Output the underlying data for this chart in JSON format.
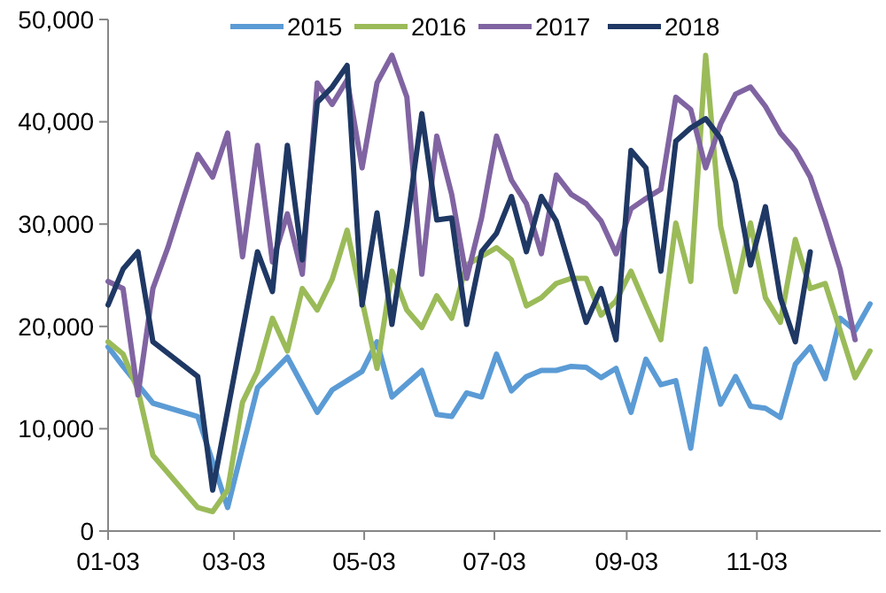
{
  "chart_data": {
    "type": "line",
    "legend": "top",
    "line_style": "solid",
    "xlim": [
      "--01-03",
      "--12-31"
    ],
    "xticks": [
      {
        "value": "--01-03",
        "label": "01-03"
      },
      {
        "value": "--03-03",
        "label": "03-03"
      },
      {
        "value": "--05-03",
        "label": "05-03"
      },
      {
        "value": "--07-03",
        "label": "07-03"
      },
      {
        "value": "--09-03",
        "label": "09-03"
      },
      {
        "value": "--11-03",
        "label": "11-03"
      }
    ],
    "ylim": [
      0,
      50000
    ],
    "yticks": [
      {
        "value": 0,
        "label": "0"
      },
      {
        "value": 10000,
        "label": "10,000"
      },
      {
        "value": 20000,
        "label": "20,000"
      },
      {
        "value": 30000,
        "label": "30,000"
      },
      {
        "value": 40000,
        "label": "40,000"
      },
      {
        "value": 50000,
        "label": "50,000"
      }
    ],
    "series": [
      {
        "name": "2015",
        "color": "#5b9bd5",
        "x": [
          "--01-03",
          "--01-10",
          "--01-24",
          "--02-14",
          "--02-28",
          "--03-14",
          "--03-28",
          "--04-11",
          "--04-18",
          "--05-02",
          "--05-09",
          "--05-16",
          "--05-30",
          "--06-06",
          "--06-13",
          "--06-20",
          "--06-27",
          "--07-04",
          "--07-11",
          "--07-18",
          "--07-25",
          "--08-01",
          "--08-08",
          "--08-15",
          "--08-22",
          "--08-29",
          "--09-05",
          "--09-12",
          "--09-19",
          "--09-26",
          "--10-03",
          "--10-10",
          "--10-17",
          "--10-24",
          "--10-31",
          "--11-07",
          "--11-14",
          "--11-21",
          "--11-28",
          "--12-05",
          "--12-12",
          "--12-19",
          "--12-26"
        ],
        "values": [
          18000,
          16100,
          12500,
          11200,
          2300,
          14000,
          17000,
          11600,
          13800,
          15600,
          18500,
          13100,
          15700,
          11400,
          11200,
          13500,
          13100,
          17300,
          13700,
          15100,
          15700,
          15700,
          16100,
          16000,
          15000,
          15900,
          11600,
          16800,
          14300,
          14700,
          8100,
          17800,
          12400,
          15100,
          12200,
          12000,
          11100,
          16300,
          18000,
          14900,
          20800,
          19600,
          22200
        ]
      },
      {
        "name": "2016",
        "color": "#9bbb59",
        "x": [
          "--01-03",
          "--01-10",
          "--01-17",
          "--01-24",
          "--02-14",
          "--02-21",
          "--02-28",
          "--03-07",
          "--03-14",
          "--03-21",
          "--03-28",
          "--04-04",
          "--04-11",
          "--04-18",
          "--04-25",
          "--05-02",
          "--05-09",
          "--05-16",
          "--05-23",
          "--05-30",
          "--06-06",
          "--06-13",
          "--06-20",
          "--07-04",
          "--07-11",
          "--07-18",
          "--07-25",
          "--08-01",
          "--08-08",
          "--08-15",
          "--08-22",
          "--08-29",
          "--09-05",
          "--09-12",
          "--09-19",
          "--09-26",
          "--10-03",
          "--10-10",
          "--10-17",
          "--10-24",
          "--10-31",
          "--11-07",
          "--11-14",
          "--11-21",
          "--11-28",
          "--12-05",
          "--12-12",
          "--12-19",
          "--12-26"
        ],
        "values": [
          18500,
          17300,
          13800,
          7400,
          2300,
          1900,
          4000,
          12600,
          15600,
          20800,
          17600,
          23700,
          21600,
          24600,
          29400,
          22500,
          15900,
          25400,
          21600,
          19900,
          23000,
          20800,
          26000,
          27700,
          26500,
          22000,
          22800,
          24200,
          24700,
          24700,
          21100,
          22500,
          25400,
          22000,
          18700,
          30100,
          24400,
          46500,
          29800,
          23400,
          30100,
          22800,
          20400,
          28500,
          23700,
          24200,
          19600,
          15000,
          17600
        ]
      },
      {
        "name": "2017",
        "color": "#8064a2",
        "x": [
          "--01-03",
          "--01-10",
          "--01-17",
          "--01-24",
          "--01-31",
          "--02-07",
          "--02-14",
          "--02-21",
          "--02-28",
          "--03-07",
          "--03-14",
          "--03-21",
          "--03-28",
          "--04-04",
          "--04-11",
          "--04-18",
          "--04-25",
          "--05-02",
          "--05-09",
          "--05-16",
          "--05-23",
          "--05-30",
          "--06-06",
          "--06-13",
          "--06-20",
          "--06-27",
          "--07-04",
          "--07-11",
          "--07-18",
          "--07-25",
          "--08-01",
          "--08-08",
          "--08-15",
          "--08-22",
          "--08-29",
          "--09-05",
          "--09-12",
          "--09-19",
          "--09-26",
          "--10-03",
          "--10-10",
          "--10-17",
          "--10-24",
          "--10-31",
          "--11-07",
          "--11-14",
          "--11-21",
          "--11-28",
          "--12-05",
          "--12-12",
          "--12-19"
        ],
        "values": [
          24400,
          23700,
          13300,
          23700,
          27700,
          32300,
          36800,
          34600,
          38900,
          26800,
          37700,
          26300,
          31000,
          25100,
          43800,
          41700,
          44100,
          35500,
          43800,
          46500,
          42400,
          25100,
          38600,
          32900,
          24700,
          30600,
          38600,
          34300,
          32000,
          27100,
          34800,
          32900,
          32000,
          30300,
          27100,
          31500,
          32500,
          33400,
          42400,
          41200,
          35500,
          39800,
          42700,
          43400,
          41500,
          38900,
          37200,
          34600,
          30300,
          25600,
          18700
        ]
      },
      {
        "name": "2018",
        "color": "#1f3864",
        "x": [
          "--01-03",
          "--01-10",
          "--01-17",
          "--01-24",
          "--02-14",
          "--02-21",
          "--03-14",
          "--03-21",
          "--03-28",
          "--04-04",
          "--04-11",
          "--04-18",
          "--04-25",
          "--05-02",
          "--05-09",
          "--05-16",
          "--05-23",
          "--05-30",
          "--06-06",
          "--06-13",
          "--06-20",
          "--06-27",
          "--07-04",
          "--07-11",
          "--07-18",
          "--07-25",
          "--08-01",
          "--08-08",
          "--08-15",
          "--08-22",
          "--08-29",
          "--09-05",
          "--09-12",
          "--09-19",
          "--09-26",
          "--10-03",
          "--10-10",
          "--10-17",
          "--10-24",
          "--10-31",
          "--11-07",
          "--11-14",
          "--11-21",
          "--11-28"
        ],
        "values": [
          22100,
          25600,
          27300,
          18500,
          15100,
          4000,
          27300,
          23400,
          37700,
          26500,
          41900,
          43400,
          45500,
          22100,
          31100,
          20200,
          29900,
          40800,
          30400,
          30600,
          20200,
          27300,
          29100,
          32700,
          27300,
          32700,
          30300,
          25400,
          20400,
          23700,
          18700,
          37200,
          35500,
          25400,
          38100,
          39400,
          40300,
          38400,
          34100,
          26000,
          31700,
          22800,
          18500,
          27300
        ]
      }
    ]
  }
}
